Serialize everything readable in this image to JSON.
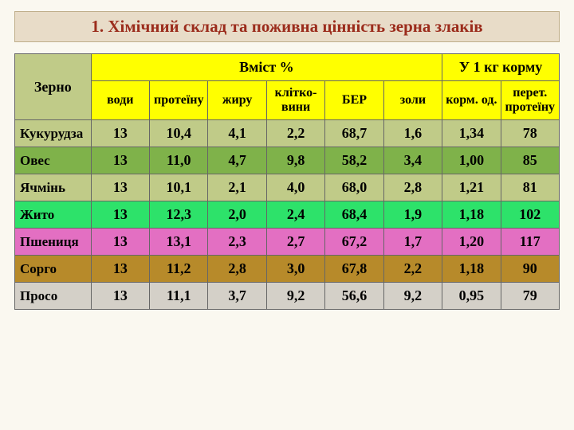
{
  "title": "1. Хімічний склад та поживна цінність зерна злаків",
  "table": {
    "columns": {
      "zerno": "Зерно",
      "group_vmist": "Вміст %",
      "group_korm": "У 1 кг корму",
      "sub": [
        "води",
        "протеїну",
        "жиру",
        "клітко-\nвини",
        "БЕР",
        "золи",
        "корм. од.",
        "перет. протеїну"
      ]
    },
    "rows": [
      {
        "label": "Кукурудза",
        "cells": [
          "13",
          "10,4",
          "4,1",
          "2,2",
          "68,7",
          "1,6",
          "1,34",
          "78"
        ],
        "bg": "#c0cb88"
      },
      {
        "label": "Овес",
        "cells": [
          "13",
          "11,0",
          "4,7",
          "9,8",
          "58,2",
          "3,4",
          "1,00",
          "85"
        ],
        "bg": "#7fb24a"
      },
      {
        "label": "Ячмінь",
        "cells": [
          "13",
          "10,1",
          "2,1",
          "4,0",
          "68,0",
          "2,8",
          "1,21",
          "81"
        ],
        "bg": "#c0cb88"
      },
      {
        "label": "Жито",
        "cells": [
          "13",
          "12,3",
          "2,0",
          "2,4",
          "68,4",
          "1,9",
          "1,18",
          "102"
        ],
        "bg": "#2de26a"
      },
      {
        "label": "Пшениця",
        "cells": [
          "13",
          "13,1",
          "2,3",
          "2,7",
          "67,2",
          "1,7",
          "1,20",
          "117"
        ],
        "bg": "#e36fc2"
      },
      {
        "label": "Сорго",
        "cells": [
          "13",
          "11,2",
          "2,8",
          "3,0",
          "67,8",
          "2,2",
          "1,18",
          "90"
        ],
        "bg": "#b78a2a"
      },
      {
        "label": "Просо",
        "cells": [
          "13",
          "11,1",
          "3,7",
          "9,2",
          "56,6",
          "9,2",
          "0,95",
          "79"
        ],
        "bg": "#d4d0c8"
      }
    ],
    "header_colors": {
      "zerno_bg": "#c0cb88",
      "group_bg": "#ffff00",
      "sub_bg": "#ffff00"
    }
  },
  "style": {
    "title_bg": "#e8dcc8",
    "title_border": "#bfae8a",
    "title_color": "#9b2c1c",
    "slide_bg": "#faf8f0",
    "cell_border": "#666666",
    "title_fontsize": 21,
    "header_fontsize": 18,
    "sub_fontsize": 16,
    "cell_fontsize": 18
  }
}
